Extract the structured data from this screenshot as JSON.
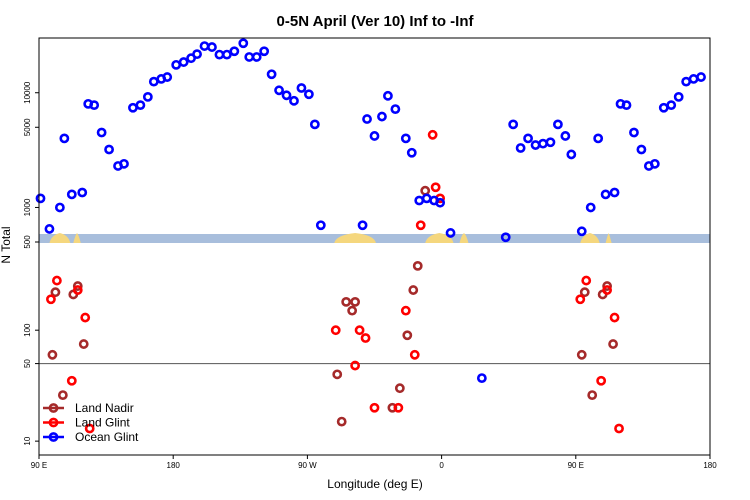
{
  "chart_data": {
    "type": "scatter",
    "title": "0-5N April (Ver 10)   Inf to -Inf",
    "xlabel": "Longitude (deg E)",
    "ylabel": "N Total",
    "x_ticks": [
      {
        "lon": 90,
        "label": "90 E"
      },
      {
        "lon": 180,
        "label": "180"
      },
      {
        "lon": 270,
        "label": "90 W"
      },
      {
        "lon": 360,
        "label": "0"
      },
      {
        "lon": 450,
        "label": "90 E"
      },
      {
        "lon": 540,
        "label": "180"
      }
    ],
    "xlim": [
      90,
      540
    ],
    "y_scale": "log",
    "lower_ylim": [
      7.5,
      650
    ],
    "upper_ylim": [
      500,
      30000
    ],
    "lower_ticks": [
      {
        "value": 10,
        "label": "10"
      },
      {
        "value": 50,
        "label": "50"
      },
      {
        "value": 100,
        "label": "100"
      },
      {
        "value": 500,
        "label": "500"
      }
    ],
    "upper_ticks": [
      {
        "value": 1000,
        "label": "1000"
      },
      {
        "value": 5000,
        "label": "5000"
      },
      {
        "value": 10000,
        "label": "10000"
      }
    ],
    "reference_line": 50,
    "map_strip": {
      "ocean_color": "#a8bedc",
      "land_color": "#f5d77e"
    },
    "legend_position": "bottom-left",
    "series": [
      {
        "name": "Land Nadir",
        "color": "#a52a2a",
        "points": [
          [
            99,
            60
          ],
          [
            101,
            220
          ],
          [
            106,
            26
          ],
          [
            113,
            210
          ],
          [
            116,
            250
          ],
          [
            120,
            75
          ],
          [
            290,
            40
          ],
          [
            293,
            15
          ],
          [
            296,
            180
          ],
          [
            300,
            150
          ],
          [
            302,
            180
          ],
          [
            327,
            20
          ],
          [
            332,
            30
          ],
          [
            337,
            90
          ],
          [
            341,
            230
          ],
          [
            344,
            380
          ],
          [
            349,
            1400
          ],
          [
            454,
            60
          ],
          [
            456,
            220
          ],
          [
            461,
            26
          ],
          [
            468,
            210
          ],
          [
            471,
            250
          ],
          [
            475,
            75
          ]
        ]
      },
      {
        "name": "Land Glint",
        "color": "#ff0000",
        "points": [
          [
            98,
            190
          ],
          [
            102,
            280
          ],
          [
            112,
            35
          ],
          [
            116,
            230
          ],
          [
            121,
            130
          ],
          [
            124,
            13
          ],
          [
            289,
            100
          ],
          [
            302,
            48
          ],
          [
            305,
            100
          ],
          [
            309,
            85
          ],
          [
            315,
            20
          ],
          [
            331,
            20
          ],
          [
            336,
            150
          ],
          [
            342,
            60
          ],
          [
            346,
            700
          ],
          [
            354,
            4300
          ],
          [
            356,
            1500
          ],
          [
            359,
            1200
          ],
          [
            453,
            190
          ],
          [
            457,
            280
          ],
          [
            467,
            35
          ],
          [
            471,
            230
          ],
          [
            476,
            130
          ],
          [
            479,
            13
          ]
        ]
      },
      {
        "name": "Ocean Glint",
        "color": "#0000ff",
        "points": [
          [
            91,
            1200
          ],
          [
            97,
            650
          ],
          [
            104,
            1000
          ],
          [
            107,
            4000
          ],
          [
            112,
            1300
          ],
          [
            119,
            1350
          ],
          [
            123,
            8000
          ],
          [
            127,
            7800
          ],
          [
            132,
            4500
          ],
          [
            137,
            3200
          ],
          [
            143,
            2300
          ],
          [
            147,
            2400
          ],
          [
            153,
            7400
          ],
          [
            158,
            7800
          ],
          [
            163,
            9200
          ],
          [
            167,
            12500
          ],
          [
            172,
            13200
          ],
          [
            176,
            13700
          ],
          [
            182,
            17500
          ],
          [
            187,
            18500
          ],
          [
            192,
            20000
          ],
          [
            196,
            21700
          ],
          [
            201,
            25500
          ],
          [
            206,
            25000
          ],
          [
            211,
            21500
          ],
          [
            216,
            21500
          ],
          [
            221,
            23000
          ],
          [
            227,
            27000
          ],
          [
            231,
            20500
          ],
          [
            236,
            20500
          ],
          [
            241,
            23000
          ],
          [
            246,
            14500
          ],
          [
            251,
            10500
          ],
          [
            256,
            9500
          ],
          [
            261,
            8500
          ],
          [
            266,
            11000
          ],
          [
            271,
            9700
          ],
          [
            275,
            5300
          ],
          [
            279,
            700
          ],
          [
            307,
            700
          ],
          [
            310,
            5900
          ],
          [
            315,
            4200
          ],
          [
            320,
            6200
          ],
          [
            324,
            9400
          ],
          [
            329,
            7200
          ],
          [
            336,
            4000
          ],
          [
            340,
            3000
          ],
          [
            345,
            1150
          ],
          [
            350,
            1200
          ],
          [
            355,
            1150
          ],
          [
            359,
            1100
          ],
          [
            366,
            600
          ],
          [
            387,
            37
          ],
          [
            403,
            550
          ],
          [
            408,
            5300
          ],
          [
            413,
            3300
          ],
          [
            418,
            4000
          ],
          [
            423,
            3500
          ],
          [
            428,
            3600
          ],
          [
            433,
            3700
          ],
          [
            438,
            5300
          ],
          [
            443,
            4200
          ],
          [
            447,
            2900
          ],
          [
            454,
            620
          ],
          [
            460,
            1000
          ],
          [
            465,
            4000
          ],
          [
            470,
            1300
          ],
          [
            476,
            1350
          ],
          [
            480,
            8000
          ],
          [
            484,
            7800
          ],
          [
            489,
            4500
          ],
          [
            494,
            3200
          ],
          [
            499,
            2300
          ],
          [
            503,
            2400
          ],
          [
            509,
            7400
          ],
          [
            514,
            7800
          ],
          [
            519,
            9200
          ],
          [
            524,
            12500
          ],
          [
            529,
            13200
          ],
          [
            534,
            13700
          ]
        ]
      }
    ]
  }
}
